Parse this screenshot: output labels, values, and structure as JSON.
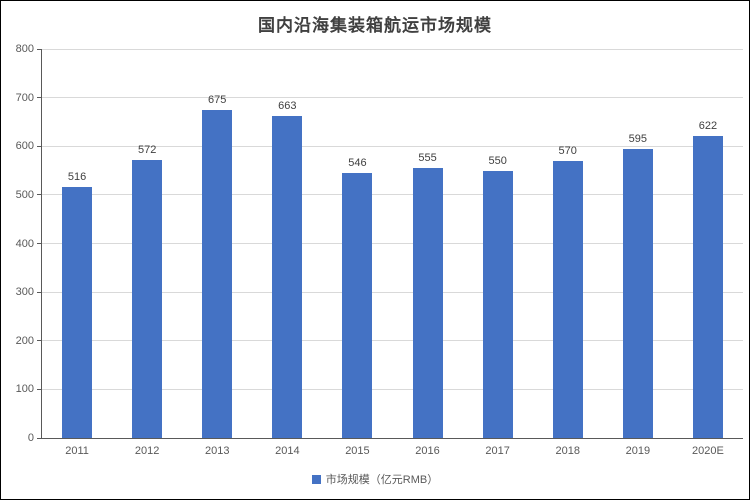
{
  "chart_data": {
    "type": "bar",
    "title": "国内沿海集装箱航运市场规模",
    "categories": [
      "2011",
      "2012",
      "2013",
      "2014",
      "2015",
      "2016",
      "2017",
      "2018",
      "2019",
      "2020E"
    ],
    "values": [
      516,
      572,
      675,
      663,
      546,
      555,
      550,
      570,
      595,
      622
    ],
    "xlabel": "",
    "ylabel": "",
    "ylim": [
      0,
      800
    ],
    "ytick_step": 100,
    "grid": true,
    "legend_position": "bottom",
    "legend": {
      "label": "市场规模（亿元RMB）",
      "swatch_color": "#4472c4"
    },
    "bar_color": "#4472c4"
  },
  "colors": {
    "bar": "#4472c4",
    "gridline": "#d9d9d9",
    "axis": "#595959",
    "title_text": "#404040",
    "tick_text": "#595959",
    "value_label_text": "#404040",
    "background": "#ffffff",
    "frame_border": "#000000"
  }
}
